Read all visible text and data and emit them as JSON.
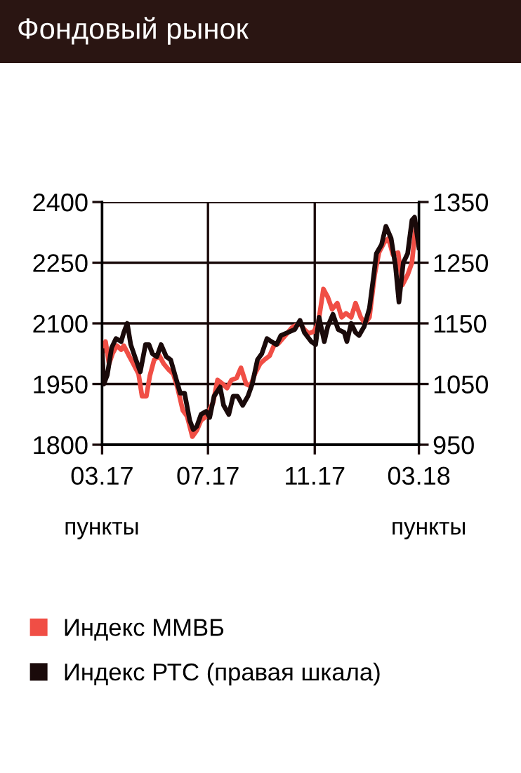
{
  "chart_data": {
    "type": "line",
    "title": "Фондовый рынок",
    "ylabel": "пункты",
    "y2label": "пункты",
    "xlim": [
      "2017-03-01",
      "2018-03-01"
    ],
    "xticks": [
      {
        "value": "2017-03-01",
        "label": "03.17"
      },
      {
        "value": "2017-07-01",
        "label": "07.17"
      },
      {
        "value": "2017-11-01",
        "label": "11.17"
      },
      {
        "value": "2018-03-01",
        "label": "03.18"
      }
    ],
    "ylim": [
      1800,
      2400
    ],
    "yticks": [
      1800,
      1950,
      2100,
      2250,
      2400
    ],
    "y2lim": [
      950,
      1350
    ],
    "y2ticks": [
      950,
      1050,
      1150,
      1250,
      1350
    ],
    "grid": true,
    "legend": "bottom",
    "marker": "none",
    "line_style": "solid",
    "series": [
      {
        "name": "Индекс ММВБ",
        "color": "#f04e45",
        "x": [
          "2017-03-01",
          "2017-03-05",
          "2017-03-09",
          "2017-03-13",
          "2017-03-18",
          "2017-03-23",
          "2017-03-26",
          "2017-04-01",
          "2017-04-06",
          "2017-04-12",
          "2017-04-16",
          "2017-04-21",
          "2017-04-25",
          "2017-04-30",
          "2017-05-06",
          "2017-05-11",
          "2017-05-17",
          "2017-05-22",
          "2017-05-27",
          "2017-06-02",
          "2017-06-07",
          "2017-06-13",
          "2017-06-18",
          "2017-06-23",
          "2017-06-29",
          "2017-07-07",
          "2017-07-12",
          "2017-07-18",
          "2017-07-23",
          "2017-07-28",
          "2017-08-03",
          "2017-08-08",
          "2017-08-14",
          "2017-08-19",
          "2017-08-24",
          "2017-08-30",
          "2017-09-04",
          "2017-09-10",
          "2017-09-15",
          "2017-09-20",
          "2017-09-28",
          "2017-10-06",
          "2017-10-15",
          "2017-10-20",
          "2017-10-25",
          "2017-10-31",
          "2017-11-05",
          "2017-11-11",
          "2017-11-16",
          "2017-11-21",
          "2017-11-27",
          "2017-12-02",
          "2017-12-07",
          "2017-12-13",
          "2017-12-18",
          "2017-12-24",
          "2017-12-29",
          "2018-01-03",
          "2018-01-09",
          "2018-01-14",
          "2018-01-20",
          "2018-01-25",
          "2018-01-30",
          "2018-02-05",
          "2018-02-10",
          "2018-02-16",
          "2018-02-21",
          "2018-02-24",
          "2018-02-26",
          "2018-03-01"
        ],
        "values": [
          2025,
          2055,
          2000,
          2025,
          2045,
          2035,
          2045,
          2020,
          2000,
          1975,
          1920,
          1920,
          1970,
          2010,
          2020,
          2000,
          1985,
          1975,
          1940,
          1885,
          1870,
          1820,
          1835,
          1860,
          1870,
          1905,
          1960,
          1950,
          1940,
          1960,
          1965,
          1990,
          1950,
          1945,
          1975,
          2000,
          2010,
          2020,
          2045,
          2050,
          2070,
          2090,
          2100,
          2085,
          2075,
          2080,
          2100,
          2185,
          2165,
          2135,
          2150,
          2115,
          2125,
          2115,
          2150,
          2115,
          2100,
          2115,
          2220,
          2275,
          2300,
          2310,
          2270,
          2275,
          2195,
          2220,
          2250,
          2315,
          2345,
          2300
        ]
      },
      {
        "name": "Индекс РТС (правая шкала)",
        "color": "#1a0a0a",
        "axis": "y2",
        "x": [
          "2017-03-01",
          "2017-03-03",
          "2017-03-07",
          "2017-03-12",
          "2017-03-17",
          "2017-03-23",
          "2017-03-26",
          "2017-03-30",
          "2017-04-03",
          "2017-04-09",
          "2017-04-14",
          "2017-04-20",
          "2017-04-24",
          "2017-04-28",
          "2017-05-03",
          "2017-05-08",
          "2017-05-14",
          "2017-05-19",
          "2017-05-25",
          "2017-05-30",
          "2017-06-04",
          "2017-06-10",
          "2017-06-14",
          "2017-06-18",
          "2017-06-23",
          "2017-06-29",
          "2017-07-03",
          "2017-07-08",
          "2017-07-15",
          "2017-07-19",
          "2017-07-25",
          "2017-07-30",
          "2017-08-04",
          "2017-08-10",
          "2017-08-16",
          "2017-08-21",
          "2017-08-27",
          "2017-09-01",
          "2017-09-07",
          "2017-09-12",
          "2017-09-18",
          "2017-09-23",
          "2017-10-01",
          "2017-10-09",
          "2017-10-15",
          "2017-10-20",
          "2017-10-28",
          "2017-11-02",
          "2017-11-06",
          "2017-11-12",
          "2017-11-16",
          "2017-11-22",
          "2017-11-28",
          "2017-12-05",
          "2017-12-08",
          "2017-12-13",
          "2017-12-18",
          "2017-12-22",
          "2017-12-28",
          "2018-01-03",
          "2018-01-08",
          "2018-01-11",
          "2018-01-17",
          "2018-01-22",
          "2018-01-28",
          "2018-02-02",
          "2018-02-06",
          "2018-02-11",
          "2018-02-16",
          "2018-02-21",
          "2018-02-24",
          "2018-03-01"
        ],
        "values": [
          1105,
          1050,
          1065,
          1110,
          1125,
          1120,
          1135,
          1150,
          1115,
          1090,
          1070,
          1115,
          1115,
          1100,
          1095,
          1115,
          1095,
          1090,
          1060,
          1035,
          1035,
          990,
          975,
          980,
          1000,
          1005,
          995,
          1030,
          1045,
          1015,
          1000,
          1030,
          1030,
          1015,
          1030,
          1050,
          1090,
          1100,
          1125,
          1120,
          1115,
          1130,
          1135,
          1140,
          1155,
          1135,
          1120,
          1115,
          1160,
          1120,
          1145,
          1165,
          1140,
          1135,
          1120,
          1150,
          1135,
          1130,
          1145,
          1175,
          1230,
          1265,
          1280,
          1310,
          1290,
          1245,
          1185,
          1250,
          1265,
          1320,
          1325,
          1275
        ]
      }
    ]
  }
}
